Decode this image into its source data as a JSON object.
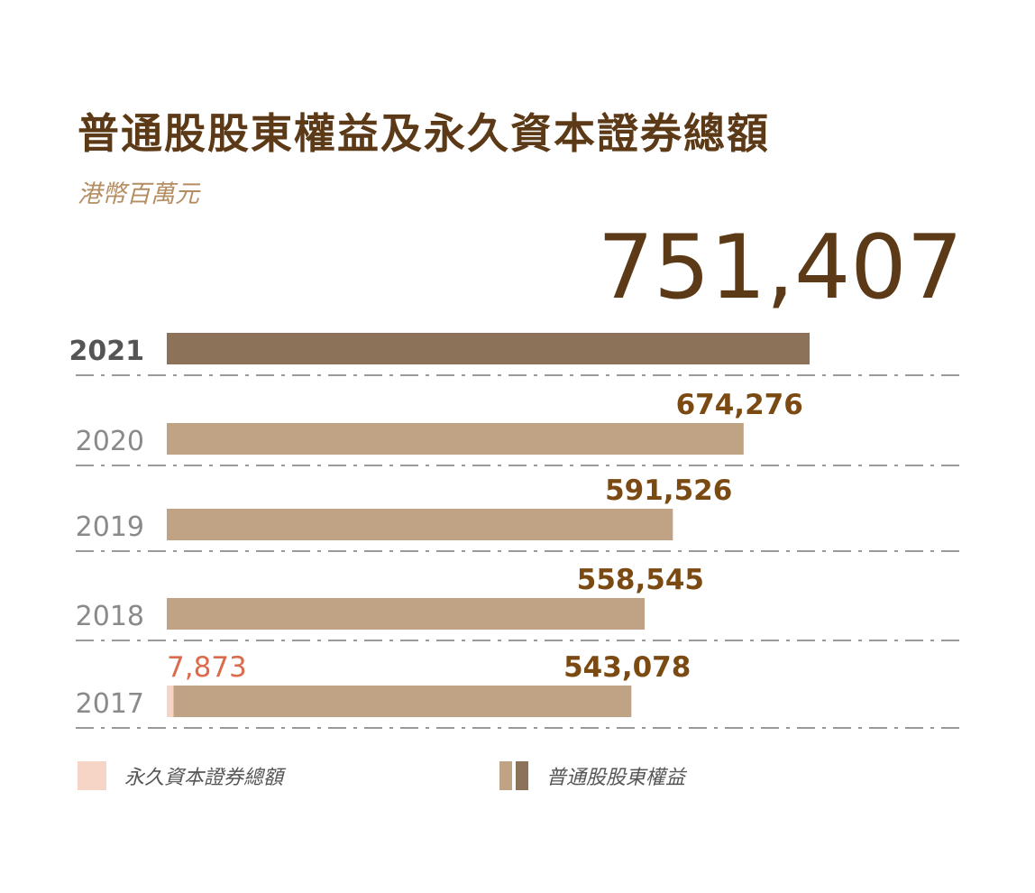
{
  "title": "普通股股東權益及永久資本證券總額",
  "subtitle": "港幣百萬元",
  "colors": {
    "title": "#5c3a17",
    "subtitle": "#b48d62",
    "bar_current": "#8c7259",
    "bar_past": "#c0a384",
    "perpetual": "#f6d5c6",
    "value_label": "#7b4a12",
    "perpetual_label": "#dc6a4c",
    "year_current": "#555555",
    "year_past": "#8a8a8a",
    "grid": "#9a9a9a"
  },
  "chart_data": {
    "type": "bar",
    "orientation": "horizontal",
    "stacked": true,
    "title": "普通股股東權益及永久資本證券總額",
    "subtitle": "港幣百萬元",
    "categories": [
      "2021",
      "2020",
      "2019",
      "2018",
      "2017"
    ],
    "highlight_category": "2021",
    "series": [
      {
        "name": "永久資本證券總額",
        "values": [
          0,
          0,
          0,
          0,
          7873
        ]
      },
      {
        "name": "普通股股東權益",
        "values": [
          751407,
          674276,
          591526,
          558545,
          535205
        ]
      }
    ],
    "total_labels": [
      "751,407",
      "674,276",
      "591,526",
      "558,545",
      "543,078"
    ],
    "perpetual_labels": [
      "",
      "",
      "",
      "",
      "7,873"
    ],
    "xlim": [
      0,
      751407
    ],
    "grid": true,
    "legend_position": "bottom"
  }
}
